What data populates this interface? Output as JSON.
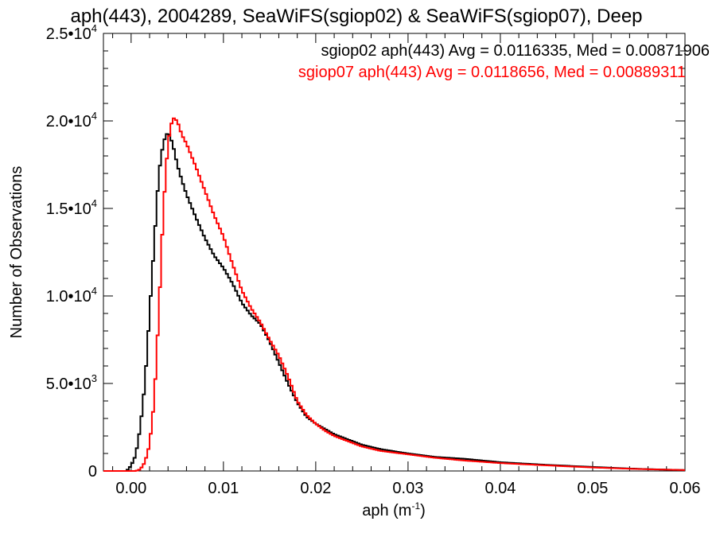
{
  "chart_data": {
    "type": "line",
    "title": "aph(443), 2004289, SeaWiFS(sgiop02) & SeaWiFS(sgiop07), Deep",
    "xlabel": "aph (m",
    "xlabel_sup": "-1",
    "xlabel_close": ")",
    "ylabel": "Number of Observations",
    "xlim": [
      -0.003,
      0.06
    ],
    "ylim": [
      0,
      25000
    ],
    "x_ticks": [
      0.0,
      0.01,
      0.02,
      0.03,
      0.04,
      0.05,
      0.06
    ],
    "x_tick_labels": [
      "0.00",
      "0.01",
      "0.02",
      "0.03",
      "0.04",
      "0.05",
      "0.06"
    ],
    "y_ticks": [
      0,
      5000,
      10000,
      15000,
      20000,
      25000
    ],
    "y_tick_labels": [
      {
        "mant": "0",
        "exp": ""
      },
      {
        "mant": "5.0•10",
        "exp": "3"
      },
      {
        "mant": "1.0•10",
        "exp": "4"
      },
      {
        "mant": "1.5•10",
        "exp": "4"
      },
      {
        "mant": "2.0•10",
        "exp": "4"
      },
      {
        "mant": "2.5•10",
        "exp": "4"
      }
    ],
    "grid": false,
    "legend_position": "top-right",
    "series": [
      {
        "name": "sgiop02 aph(443) Avg = 0.0116335, Med = 0.00871906",
        "color": "#000000",
        "points": [
          [
            -0.003,
            0
          ],
          [
            -0.0005,
            0
          ],
          [
            0.0,
            300
          ],
          [
            0.0005,
            900
          ],
          [
            0.001,
            2500
          ],
          [
            0.0015,
            5000
          ],
          [
            0.002,
            9000
          ],
          [
            0.0025,
            13000
          ],
          [
            0.003,
            17000
          ],
          [
            0.0035,
            18800
          ],
          [
            0.004,
            19400
          ],
          [
            0.0045,
            18700
          ],
          [
            0.005,
            17500
          ],
          [
            0.0055,
            16600
          ],
          [
            0.006,
            15800
          ],
          [
            0.007,
            14500
          ],
          [
            0.008,
            13300
          ],
          [
            0.009,
            12300
          ],
          [
            0.01,
            11600
          ],
          [
            0.011,
            10700
          ],
          [
            0.012,
            9600
          ],
          [
            0.013,
            8900
          ],
          [
            0.014,
            8400
          ],
          [
            0.015,
            7400
          ],
          [
            0.016,
            6200
          ],
          [
            0.017,
            5000
          ],
          [
            0.018,
            3900
          ],
          [
            0.019,
            3100
          ],
          [
            0.02,
            2700
          ],
          [
            0.021,
            2400
          ],
          [
            0.022,
            2100
          ],
          [
            0.023,
            1900
          ],
          [
            0.025,
            1500
          ],
          [
            0.027,
            1250
          ],
          [
            0.03,
            1000
          ],
          [
            0.033,
            800
          ],
          [
            0.036,
            700
          ],
          [
            0.04,
            500
          ],
          [
            0.045,
            350
          ],
          [
            0.05,
            230
          ],
          [
            0.055,
            120
          ],
          [
            0.06,
            50
          ]
        ]
      },
      {
        "name": "sgiop07 aph(443) Avg = 0.0118656, Med = 0.00889311",
        "color": "#ff0000",
        "points": [
          [
            -0.003,
            0
          ],
          [
            0.0005,
            0
          ],
          [
            0.001,
            100
          ],
          [
            0.0015,
            500
          ],
          [
            0.002,
            1500
          ],
          [
            0.0025,
            4000
          ],
          [
            0.003,
            9000
          ],
          [
            0.0035,
            15000
          ],
          [
            0.004,
            18800
          ],
          [
            0.0045,
            20200
          ],
          [
            0.005,
            20000
          ],
          [
            0.0055,
            19200
          ],
          [
            0.006,
            18700
          ],
          [
            0.007,
            17400
          ],
          [
            0.008,
            16000
          ],
          [
            0.009,
            14600
          ],
          [
            0.01,
            13400
          ],
          [
            0.011,
            11800
          ],
          [
            0.012,
            10300
          ],
          [
            0.013,
            9300
          ],
          [
            0.014,
            8500
          ],
          [
            0.015,
            7500
          ],
          [
            0.016,
            6600
          ],
          [
            0.017,
            5400
          ],
          [
            0.018,
            4000
          ],
          [
            0.019,
            3200
          ],
          [
            0.02,
            2700
          ],
          [
            0.021,
            2300
          ],
          [
            0.022,
            2000
          ],
          [
            0.023,
            1800
          ],
          [
            0.025,
            1400
          ],
          [
            0.027,
            1150
          ],
          [
            0.03,
            950
          ],
          [
            0.033,
            750
          ],
          [
            0.036,
            600
          ],
          [
            0.04,
            450
          ],
          [
            0.045,
            320
          ],
          [
            0.05,
            200
          ],
          [
            0.055,
            110
          ],
          [
            0.06,
            50
          ]
        ]
      }
    ]
  }
}
